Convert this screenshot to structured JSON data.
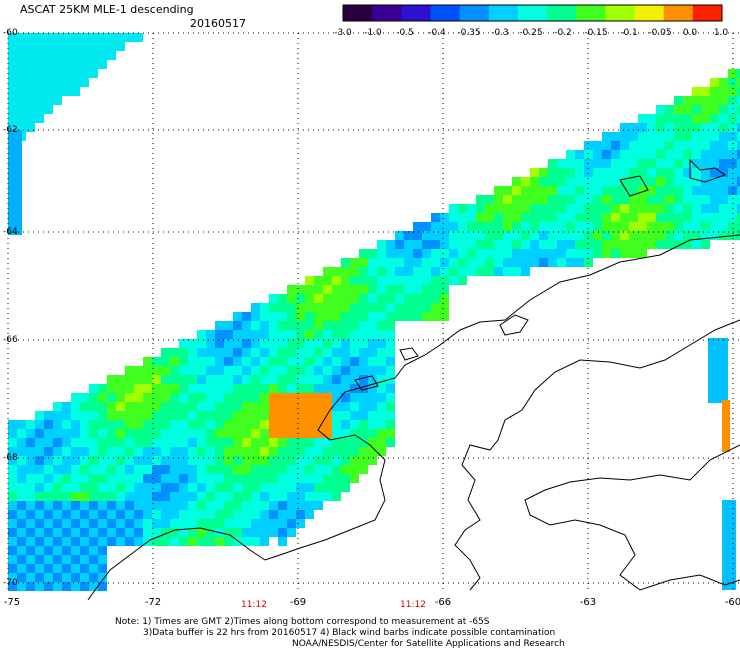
{
  "header": {
    "title": "ASCAT 25KM MLE-1 descending",
    "date": "20160517"
  },
  "colorbar": {
    "labels": [
      "-3.0",
      "-1.0",
      "-0.5",
      "-0.4",
      "-0.35",
      "-0.3",
      "-0.25",
      "-0.2",
      "-0.15",
      "-0.1",
      "-0.05",
      "0.0",
      "1.0"
    ],
    "colors": [
      "#2a0040",
      "#3c0090",
      "#3010d0",
      "#0050ff",
      "#0090ff",
      "#00d0ff",
      "#00ffe0",
      "#00ff90",
      "#40ff20",
      "#a0ff00",
      "#f0f000",
      "#ff9000",
      "#ff2000"
    ]
  },
  "axes": {
    "x_labels": [
      "-75",
      "-72",
      "-69",
      "-66",
      "-63",
      "-60"
    ],
    "y_labels": [
      "-60",
      "-62",
      "-64",
      "-66",
      "-68",
      "-70"
    ],
    "time_labels": [
      "11:12",
      "11:12"
    ]
  },
  "notes": {
    "line1": "Note: 1) Times are GMT 2)Times along bottom correspond to measurement at -65S",
    "line2": "3)Data buffer is 22 hrs from 20160517 4) Black wind barbs indicate possible contamination",
    "line3": "NOAA/NESDIS/Center for Satellite Applications and Research"
  }
}
